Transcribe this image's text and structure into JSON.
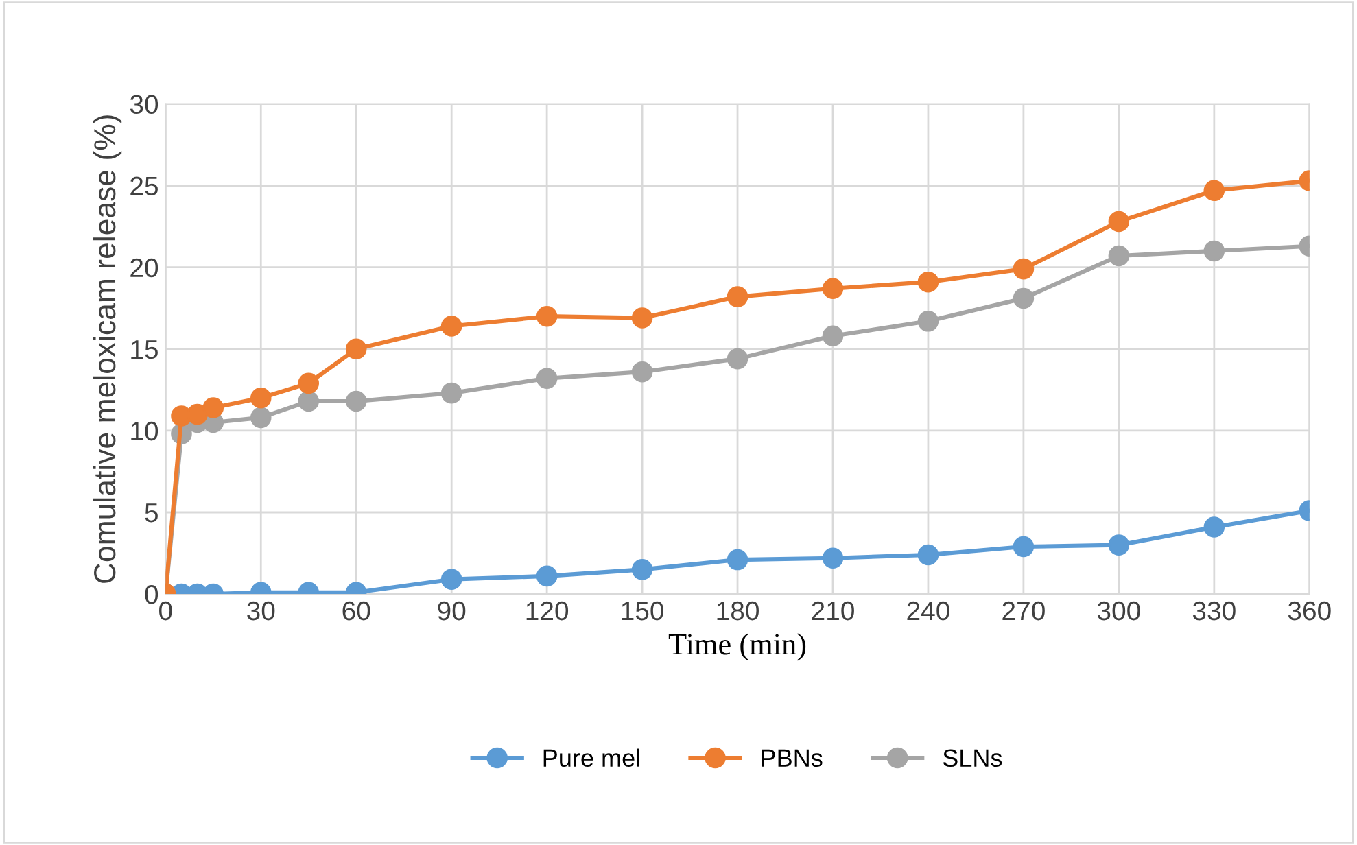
{
  "chart_data": {
    "type": "line",
    "xlabel": "Time (min)",
    "ylabel": "Comulative meloxicam release (%)",
    "x": [
      0,
      5,
      10,
      15,
      30,
      45,
      60,
      90,
      120,
      150,
      180,
      210,
      240,
      270,
      300,
      330,
      360
    ],
    "series": [
      {
        "name": "Pure mel",
        "color": "#5b9bd5",
        "values": [
          0,
          0,
          0,
          0,
          0.1,
          0.1,
          0.1,
          0.9,
          1.1,
          1.5,
          2.1,
          2.2,
          2.4,
          2.9,
          3.0,
          4.1,
          5.1
        ]
      },
      {
        "name": "PBNs",
        "color": "#ed7d31",
        "values": [
          0,
          10.9,
          11.0,
          11.4,
          12.0,
          12.9,
          15.0,
          16.4,
          17.0,
          16.9,
          18.2,
          18.7,
          19.1,
          19.9,
          22.8,
          24.7,
          25.3
        ]
      },
      {
        "name": "SLNs",
        "color": "#a5a5a5",
        "values": [
          0,
          9.8,
          10.5,
          10.5,
          10.8,
          11.8,
          11.8,
          12.3,
          13.2,
          13.6,
          14.4,
          15.8,
          16.7,
          18.1,
          20.7,
          21.0,
          21.3
        ]
      }
    ],
    "xlim": [
      0,
      360
    ],
    "xticks": [
      0,
      30,
      60,
      90,
      120,
      150,
      180,
      210,
      240,
      270,
      300,
      330,
      360
    ],
    "ylim": [
      0,
      30
    ],
    "yticks": [
      0,
      5,
      10,
      15,
      20,
      25,
      30
    ],
    "grid": true,
    "legend": "bottom",
    "marker": "circle",
    "line_style": "solid"
  }
}
